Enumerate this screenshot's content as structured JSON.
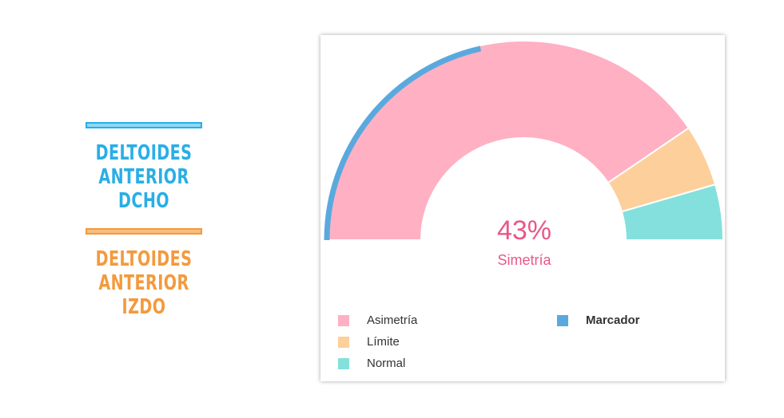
{
  "side_legend": [
    {
      "label_line1": "DELTOIDES ANTERIOR",
      "label_line2": "DCHO",
      "color": "#29aee6",
      "fill": "#8dd8f5"
    },
    {
      "label_line1": "DELTOIDES ANTERIOR",
      "label_line2": "IZDO",
      "color": "#f39a3d",
      "fill": "#f9be7f"
    }
  ],
  "chart_data": {
    "type": "gauge",
    "center_value": "43%",
    "center_label": "Simetría",
    "range": [
      0,
      100
    ],
    "segments": [
      {
        "name": "Asimetría",
        "start": 0,
        "end": 81,
        "color": "#ffb0c3"
      },
      {
        "name": "Límite",
        "start": 81,
        "end": 91,
        "color": "#fdcf9b"
      },
      {
        "name": "Normal",
        "start": 91,
        "end": 100,
        "color": "#84e0dc"
      }
    ],
    "marker": {
      "name": "Marcador",
      "value": 43,
      "color": "#5aa9de"
    },
    "legend": [
      {
        "name": "Asimetría",
        "color": "#ffb0c3"
      },
      {
        "name": "Límite",
        "color": "#fdcf9b"
      },
      {
        "name": "Normal",
        "color": "#84e0dc"
      },
      {
        "name": "Marcador",
        "color": "#5aa9de",
        "bold": true
      }
    ]
  }
}
